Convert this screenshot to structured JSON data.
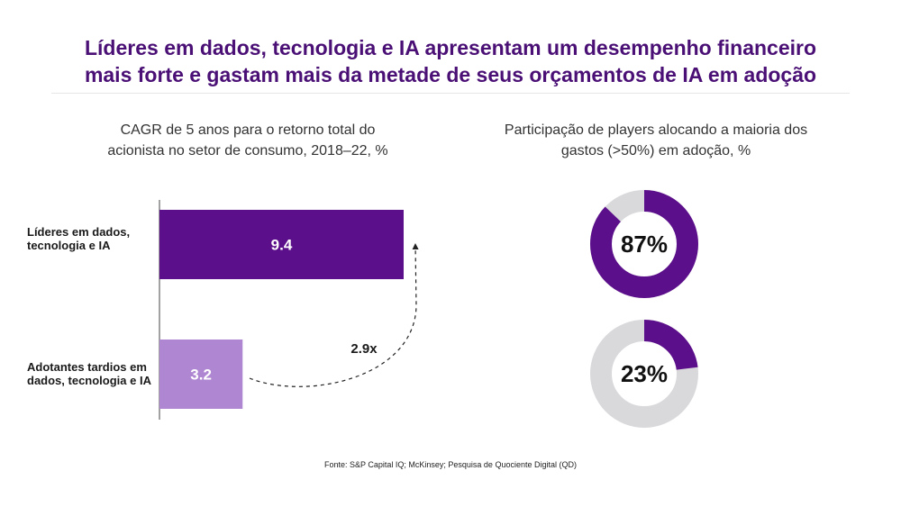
{
  "title_line1": "Líderes em dados, tecnologia e IA apresentam um desempenho financeiro",
  "title_line2": "mais forte e gastam mais da metade de seus orçamentos de IA em adoção",
  "source": "Fonte: S&P Capital IQ; McKinsey; Pesquisa de Quociente Digital (QD)",
  "chart_data": [
    {
      "type": "bar",
      "orientation": "horizontal",
      "title_line1": "CAGR de 5 anos para o retorno total do",
      "title_line2": "acionista no setor de consumo, 2018–22, %",
      "categories": [
        "Líderes em dados, tecnologia e IA",
        "Adotantes tardios em dados, tecnologia e IA"
      ],
      "values": [
        9.4,
        3.2
      ],
      "value_labels": [
        "9.4",
        "3.2"
      ],
      "colors": [
        "#5c0f8b",
        "#ae86d1"
      ],
      "annotation": "2.9x",
      "xlim": [
        0,
        9.4
      ]
    },
    {
      "type": "pie",
      "variant": "donut",
      "title_line1": "Participação de players alocando a maioria dos",
      "title_line2": "gastos (>50%) em adoção, %",
      "values": [
        87,
        23
      ],
      "value_labels": [
        "87%",
        "23%"
      ],
      "fill_color": "#5c0f8b",
      "track_color": "#d9d9dc"
    }
  ]
}
